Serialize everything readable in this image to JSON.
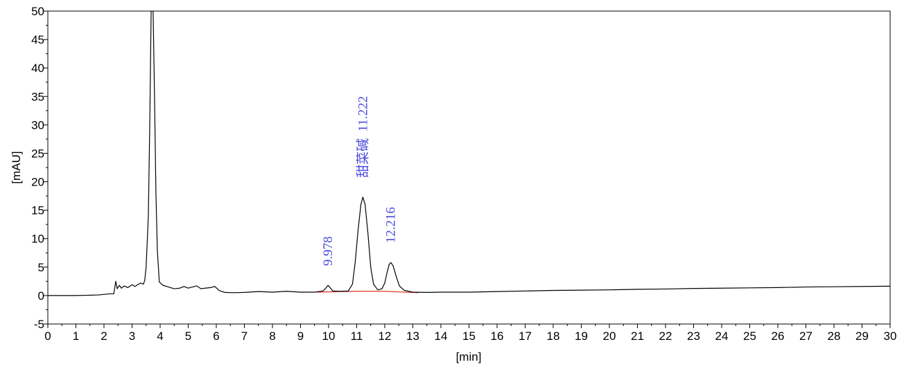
{
  "chart_data": {
    "type": "line",
    "title": "",
    "xlabel": "[min]",
    "ylabel": "[mAU]",
    "xlim": [
      0,
      30
    ],
    "ylim": [
      -5,
      50
    ],
    "x_ticks": [
      0,
      1,
      2,
      3,
      4,
      5,
      6,
      7,
      8,
      9,
      10,
      11,
      12,
      13,
      14,
      15,
      16,
      17,
      18,
      19,
      20,
      21,
      22,
      23,
      24,
      25,
      26,
      27,
      28,
      29,
      30
    ],
    "y_ticks": [
      -5,
      0,
      5,
      10,
      15,
      20,
      25,
      30,
      35,
      40,
      45,
      50
    ],
    "grid": false,
    "colors": {
      "trace": "#000000",
      "baseline": "#e03020",
      "peak_label": "#4a4ae0"
    },
    "series": [
      {
        "color": "#000000",
        "points": [
          [
            0,
            0
          ],
          [
            1.0,
            0
          ],
          [
            1.8,
            0.1
          ],
          [
            2.2,
            0.3
          ],
          [
            2.35,
            0.3
          ],
          [
            2.42,
            2.5
          ],
          [
            2.47,
            1.2
          ],
          [
            2.55,
            1.8
          ],
          [
            2.62,
            1.3
          ],
          [
            2.72,
            1.7
          ],
          [
            2.85,
            1.4
          ],
          [
            3.0,
            1.9
          ],
          [
            3.1,
            1.6
          ],
          [
            3.2,
            1.9
          ],
          [
            3.3,
            2.2
          ],
          [
            3.4,
            2.0
          ],
          [
            3.45,
            2.6
          ],
          [
            3.5,
            5
          ],
          [
            3.58,
            14
          ],
          [
            3.63,
            30
          ],
          [
            3.68,
            50
          ],
          [
            3.75,
            50
          ],
          [
            3.8,
            35
          ],
          [
            3.85,
            18
          ],
          [
            3.9,
            8
          ],
          [
            3.97,
            2.4
          ],
          [
            4.1,
            1.8
          ],
          [
            4.3,
            1.5
          ],
          [
            4.5,
            1.2
          ],
          [
            4.7,
            1.3
          ],
          [
            4.85,
            1.6
          ],
          [
            5.0,
            1.3
          ],
          [
            5.15,
            1.5
          ],
          [
            5.3,
            1.7
          ],
          [
            5.45,
            1.2
          ],
          [
            5.6,
            1.3
          ],
          [
            5.8,
            1.4
          ],
          [
            5.95,
            1.6
          ],
          [
            6.1,
            0.9
          ],
          [
            6.3,
            0.55
          ],
          [
            6.6,
            0.5
          ],
          [
            7.0,
            0.55
          ],
          [
            7.5,
            0.7
          ],
          [
            8.0,
            0.6
          ],
          [
            8.5,
            0.75
          ],
          [
            9.0,
            0.6
          ],
          [
            9.5,
            0.6
          ],
          [
            9.8,
            0.8
          ],
          [
            9.9,
            1.3
          ],
          [
            9.98,
            1.8
          ],
          [
            10.05,
            1.4
          ],
          [
            10.15,
            0.8
          ],
          [
            10.4,
            0.75
          ],
          [
            10.7,
            0.8
          ],
          [
            10.85,
            2
          ],
          [
            10.95,
            6
          ],
          [
            11.05,
            11.5
          ],
          [
            11.15,
            16
          ],
          [
            11.22,
            17.3
          ],
          [
            11.3,
            16
          ],
          [
            11.4,
            11
          ],
          [
            11.5,
            5
          ],
          [
            11.6,
            2
          ],
          [
            11.75,
            1.0
          ],
          [
            11.9,
            1.2
          ],
          [
            12.0,
            2.2
          ],
          [
            12.08,
            4
          ],
          [
            12.16,
            5.5
          ],
          [
            12.22,
            5.8
          ],
          [
            12.3,
            5.2
          ],
          [
            12.4,
            3.5
          ],
          [
            12.52,
            1.7
          ],
          [
            12.7,
            0.9
          ],
          [
            13.0,
            0.6
          ],
          [
            13.5,
            0.55
          ],
          [
            14.0,
            0.6
          ],
          [
            15.0,
            0.6
          ],
          [
            16.0,
            0.7
          ],
          [
            17.0,
            0.8
          ],
          [
            18.0,
            0.9
          ],
          [
            19.0,
            0.95
          ],
          [
            20.0,
            1.0
          ],
          [
            21.0,
            1.1
          ],
          [
            22.0,
            1.15
          ],
          [
            23.0,
            1.25
          ],
          [
            24.0,
            1.3
          ],
          [
            25.0,
            1.35
          ],
          [
            26.0,
            1.4
          ],
          [
            27.0,
            1.5
          ],
          [
            28.0,
            1.55
          ],
          [
            29.0,
            1.6
          ],
          [
            30.0,
            1.65
          ]
        ]
      }
    ],
    "baseline_segment": {
      "color": "#e03020",
      "points": [
        [
          9.6,
          0.6
        ],
        [
          10.4,
          0.7
        ],
        [
          11.0,
          0.75
        ],
        [
          12.0,
          0.75
        ],
        [
          13.2,
          0.5
        ]
      ]
    },
    "annotations": [
      {
        "text": "9.978",
        "x": 9.978,
        "y": 1.8
      },
      {
        "text": "甜菜碱  11.222",
        "x": 11.222,
        "y": 17.3
      },
      {
        "text": "12.216",
        "x": 12.216,
        "y": 5.8
      }
    ]
  }
}
